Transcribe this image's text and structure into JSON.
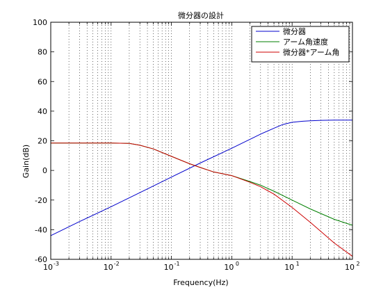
{
  "chart_data": {
    "type": "line",
    "title": "微分器の設計",
    "xlabel": "Frequency(Hz)",
    "ylabel": "Gain(dB)",
    "xscale": "log",
    "xlim": [
      0.001,
      100
    ],
    "ylim": [
      -60,
      100
    ],
    "grid": "on (x major and minor, dotted)",
    "legend_position": "top-right",
    "x_ticks": [
      {
        "base": "10",
        "exp": "-3"
      },
      {
        "base": "10",
        "exp": "-2"
      },
      {
        "base": "10",
        "exp": "-1"
      },
      {
        "base": "10",
        "exp": "0"
      },
      {
        "base": "10",
        "exp": "1"
      },
      {
        "base": "10",
        "exp": "2"
      }
    ],
    "y_ticks": [
      "100",
      "80",
      "60",
      "40",
      "20",
      "0",
      "-20",
      "-40",
      "-60"
    ],
    "series": [
      {
        "name": "微分器",
        "color": "#0000cc",
        "x": [
          0.001,
          0.003,
          0.01,
          0.03,
          0.1,
          0.3,
          1,
          2,
          3,
          5,
          7,
          10,
          15,
          20,
          30,
          50,
          100
        ],
        "y": [
          -44,
          -34.5,
          -24.5,
          -15,
          -4.5,
          5,
          15,
          21,
          24.5,
          28.5,
          31,
          32.5,
          33.2,
          33.5,
          33.8,
          34,
          34
        ]
      },
      {
        "name": "アーム角速度",
        "color": "#007f00",
        "x": [
          0.001,
          0.005,
          0.01,
          0.02,
          0.03,
          0.05,
          0.1,
          0.2,
          0.3,
          0.5,
          1,
          2,
          3,
          5,
          10,
          20,
          50,
          100
        ],
        "y": [
          18.5,
          18.5,
          18.5,
          18.2,
          17,
          14.5,
          9.5,
          4.5,
          2,
          -1,
          -3.5,
          -7.5,
          -10,
          -14,
          -20,
          -26,
          -33,
          -37
        ]
      },
      {
        "name": "微分器*アーム角",
        "color": "#cc0000",
        "x": [
          0.001,
          0.005,
          0.01,
          0.02,
          0.03,
          0.05,
          0.1,
          0.2,
          0.3,
          0.5,
          1,
          2,
          3,
          5,
          10,
          20,
          50,
          100
        ],
        "y": [
          18.5,
          18.5,
          18.5,
          18.2,
          17,
          14.5,
          9.5,
          4.5,
          2,
          -1,
          -3.5,
          -8,
          -11,
          -16,
          -25,
          -35,
          -49,
          -58
        ]
      }
    ]
  }
}
